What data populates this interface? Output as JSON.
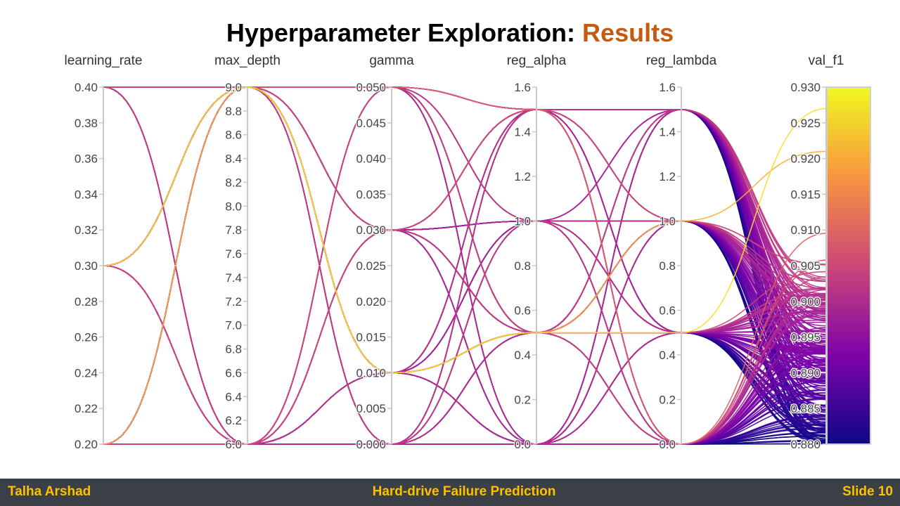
{
  "slide": {
    "title_main": "Hyperparameter Exploration: ",
    "title_accent": "Results",
    "accent_color": "#c55a11"
  },
  "footer": {
    "author": "Talha Arshad",
    "project": "Hard-drive Failure Prediction",
    "slide_number": "Slide 10",
    "text_color": "#ffc000",
    "background": "#3b4047"
  },
  "chart_data": {
    "type": "parallel_coordinates",
    "colorscale": "plasma",
    "color_dimension": "val_f1",
    "dimensions": [
      {
        "name": "learning_rate",
        "range": [
          0.2,
          0.4
        ],
        "ticks": [
          "0.20",
          "0.22",
          "0.24",
          "0.26",
          "0.28",
          "0.30",
          "0.32",
          "0.34",
          "0.36",
          "0.38",
          "0.40"
        ],
        "tick_values": [
          0.2,
          0.22,
          0.24,
          0.26,
          0.28,
          0.3,
          0.32,
          0.34,
          0.36,
          0.38,
          0.4
        ]
      },
      {
        "name": "max_depth",
        "range": [
          6,
          9
        ],
        "ticks": [
          "6.0",
          "6.2",
          "6.4",
          "6.6",
          "6.8",
          "7.0",
          "7.2",
          "7.4",
          "7.6",
          "7.8",
          "8.0",
          "8.2",
          "8.4",
          "8.6",
          "8.8",
          "9.0"
        ],
        "tick_values": [
          6,
          6.2,
          6.4,
          6.6,
          6.8,
          7,
          7.2,
          7.4,
          7.6,
          7.8,
          8,
          8.2,
          8.4,
          8.6,
          8.8,
          9
        ]
      },
      {
        "name": "gamma",
        "range": [
          0,
          0.05
        ],
        "ticks": [
          "0.000",
          "0.005",
          "0.010",
          "0.015",
          "0.020",
          "0.025",
          "0.030",
          "0.035",
          "0.040",
          "0.045",
          "0.050"
        ],
        "tick_values": [
          0,
          0.005,
          0.01,
          0.015,
          0.02,
          0.025,
          0.03,
          0.035,
          0.04,
          0.045,
          0.05
        ]
      },
      {
        "name": "reg_alpha",
        "range": [
          0,
          1.6
        ],
        "ticks": [
          "0.0",
          "0.2",
          "0.4",
          "0.6",
          "0.8",
          "1.0",
          "1.2",
          "1.4",
          "1.6"
        ],
        "tick_values": [
          0,
          0.2,
          0.4,
          0.6,
          0.8,
          1,
          1.2,
          1.4,
          1.6
        ]
      },
      {
        "name": "reg_lambda",
        "range": [
          0,
          1.6
        ],
        "ticks": [
          "0.0",
          "0.2",
          "0.4",
          "0.6",
          "0.8",
          "1.0",
          "1.2",
          "1.4",
          "1.6"
        ],
        "tick_values": [
          0,
          0.2,
          0.4,
          0.6,
          0.8,
          1,
          1.2,
          1.4,
          1.6
        ]
      },
      {
        "name": "val_f1",
        "range": [
          0.88,
          0.93
        ],
        "ticks": [
          "0.880",
          "0.885",
          "0.890",
          "0.895",
          "0.900",
          "0.905",
          "0.910",
          "0.915",
          "0.920",
          "0.925",
          "0.930"
        ],
        "tick_values": [
          0.88,
          0.885,
          0.89,
          0.895,
          0.9,
          0.905,
          0.91,
          0.915,
          0.92,
          0.925,
          0.93
        ]
      }
    ],
    "values_sets": {
      "learning_rate": [
        0.2,
        0.3,
        0.4
      ],
      "max_depth": [
        6,
        9
      ],
      "gamma": [
        0,
        0.01,
        0.03,
        0.05
      ],
      "reg_alpha": [
        0,
        0.5,
        1.0,
        1.5
      ],
      "reg_lambda": [
        0,
        0.5,
        1.0,
        1.5
      ]
    },
    "val_f1_range": [
      0.88,
      0.93
    ]
  }
}
